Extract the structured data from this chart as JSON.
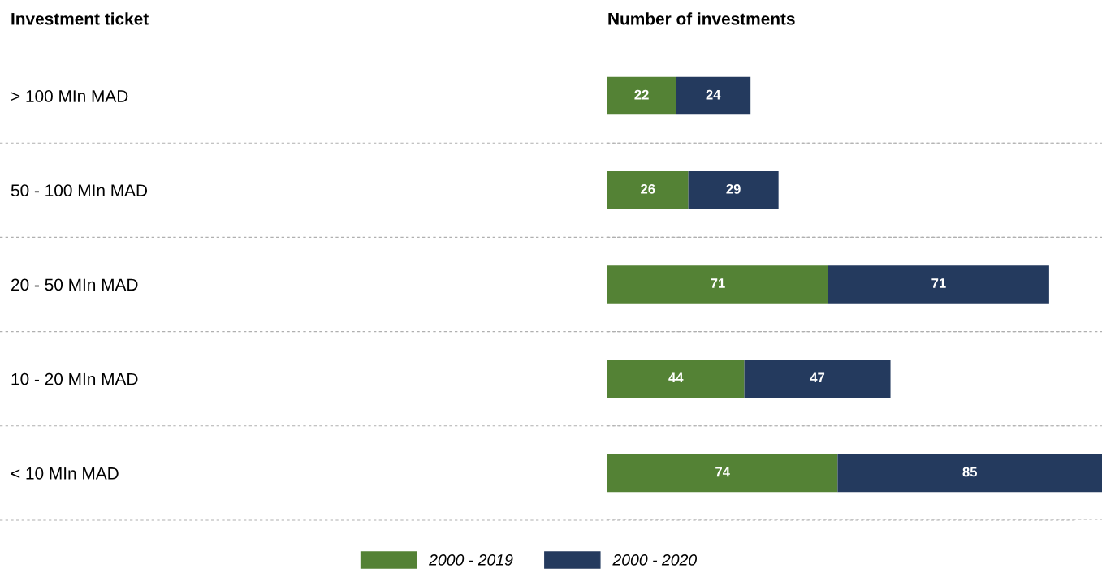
{
  "chart_data": {
    "type": "bar",
    "orientation": "horizontal",
    "stacked": true,
    "ylabel": "Investment ticket",
    "xlabel": "Number of investments",
    "categories": [
      "> 100 MIn MAD",
      "50 - 100 MIn MAD",
      "20 - 50 MIn MAD",
      "10 - 20 MIn MAD",
      "< 10 MIn MAD"
    ],
    "series": [
      {
        "name": "2000 - 2019",
        "color": "#548235",
        "values": [
          22,
          26,
          71,
          44,
          74
        ]
      },
      {
        "name": "2000 - 2020",
        "color": "#243a5e",
        "values": [
          24,
          29,
          71,
          47,
          85
        ]
      }
    ],
    "data_labels": true,
    "grid": "y",
    "legend": "bottom",
    "tick_labels": "y"
  }
}
